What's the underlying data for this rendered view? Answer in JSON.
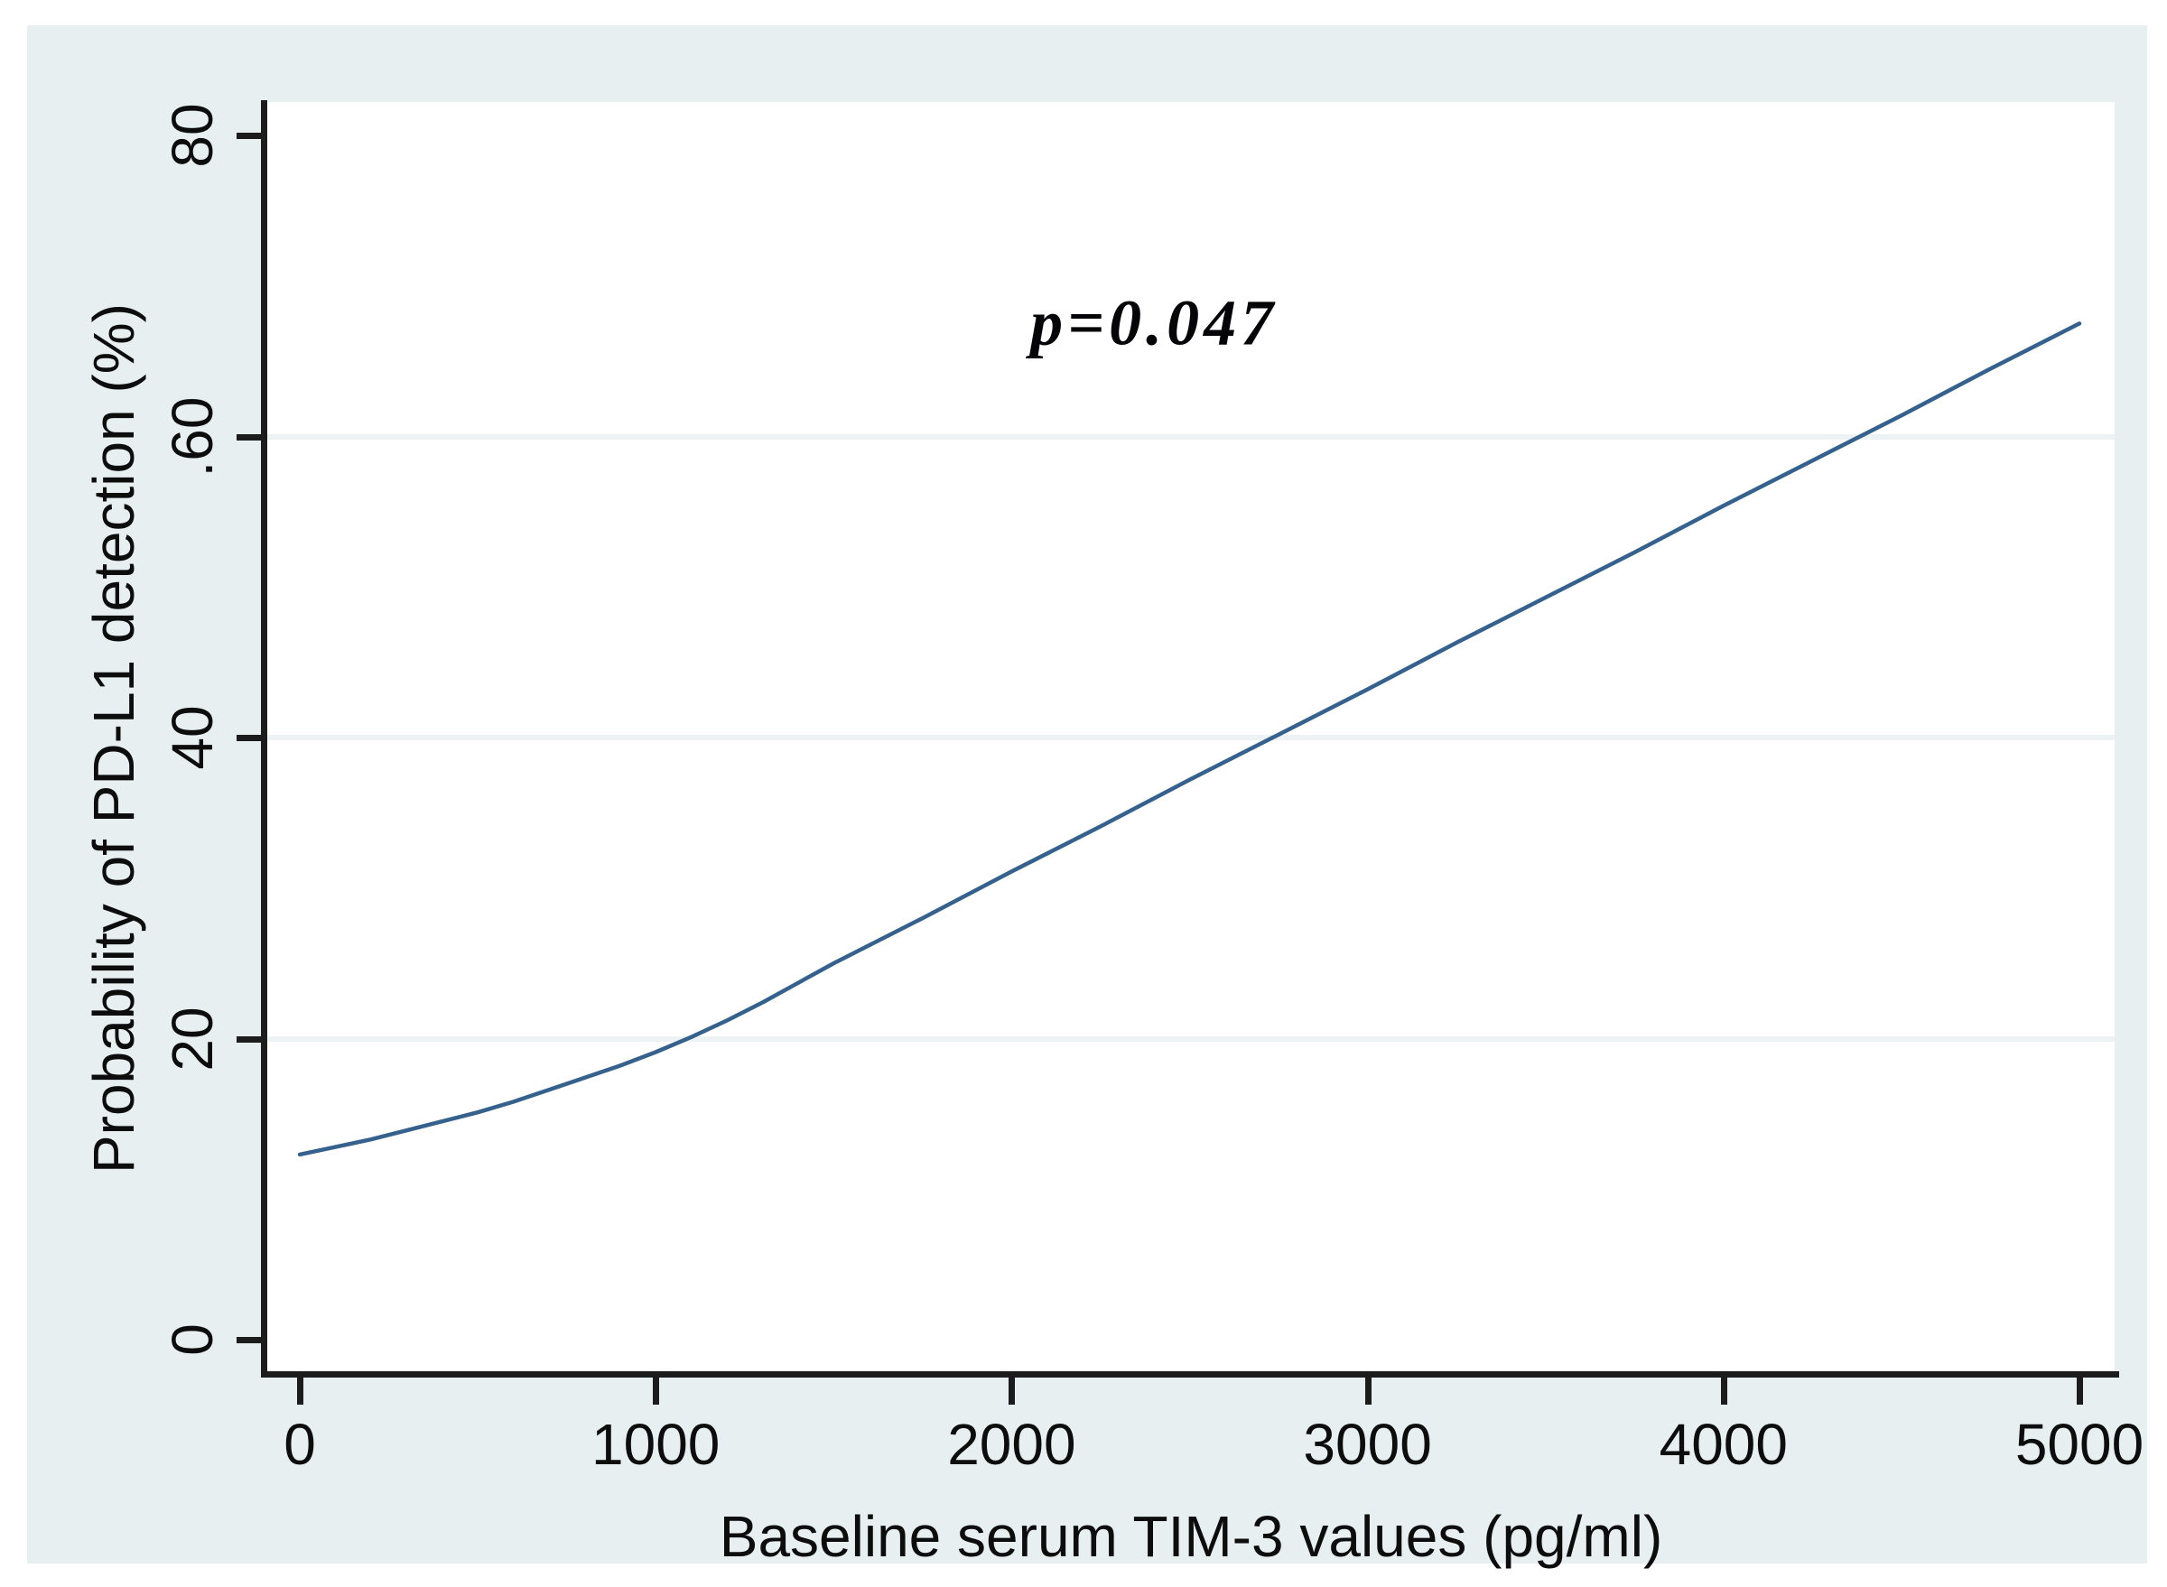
{
  "chart_data": {
    "type": "line",
    "title": "",
    "xlabel": "Baseline serum TIM-3 values (pg/ml)",
    "ylabel": "Probability of PD-L1 detection (%)",
    "xlim": [
      0,
      5000
    ],
    "ylim": [
      0,
      80
    ],
    "grid": "horizontal",
    "grid_y_values": [
      20,
      40,
      60
    ],
    "legend_position": "none",
    "x_ticks": [
      {
        "value": 0,
        "label": "0"
      },
      {
        "value": 1000,
        "label": "1000"
      },
      {
        "value": 2000,
        "label": "2000"
      },
      {
        "value": 3000,
        "label": "3000"
      },
      {
        "value": 4000,
        "label": "4000"
      },
      {
        "value": 5000,
        "label": "5000"
      }
    ],
    "y_ticks": [
      {
        "value": 0,
        "label": "0"
      },
      {
        "value": 20,
        "label": "20"
      },
      {
        "value": 40,
        "label": "40"
      },
      {
        "value": 60,
        "label": ".60"
      },
      {
        "value": 80,
        "label": "80"
      }
    ],
    "series": [
      {
        "name": "predicted-probability-curve",
        "color": "#35618c",
        "points": [
          [
            0,
            12.3
          ],
          [
            100,
            12.8
          ],
          [
            200,
            13.3
          ],
          [
            300,
            13.9
          ],
          [
            400,
            14.5
          ],
          [
            500,
            15.1
          ],
          [
            600,
            15.8
          ],
          [
            700,
            16.6
          ],
          [
            800,
            17.4
          ],
          [
            900,
            18.2
          ],
          [
            1000,
            19.1
          ],
          [
            1100,
            20.1
          ],
          [
            1200,
            21.2
          ],
          [
            1300,
            22.4
          ],
          [
            1400,
            23.7
          ],
          [
            1500,
            25.0
          ],
          [
            1750,
            28.0
          ],
          [
            2000,
            31.1
          ],
          [
            2250,
            34.1
          ],
          [
            2500,
            37.2
          ],
          [
            2750,
            40.2
          ],
          [
            3000,
            43.2
          ],
          [
            3250,
            46.3
          ],
          [
            3500,
            49.3
          ],
          [
            3750,
            52.3
          ],
          [
            4000,
            55.4
          ],
          [
            4250,
            58.4
          ],
          [
            4500,
            61.4
          ],
          [
            4750,
            64.5
          ],
          [
            5000,
            67.5
          ]
        ]
      }
    ],
    "annotation": {
      "text": "p=0.047",
      "x": 2400,
      "y": 67.5,
      "color": "#050508"
    }
  },
  "colors": {
    "panel_background": "#e8eff1",
    "plot_background": "#ffffff",
    "axis": "#1c1c1c",
    "gridline": "#edf3f5",
    "line": "#35618c",
    "text": "#0d0d0d"
  }
}
